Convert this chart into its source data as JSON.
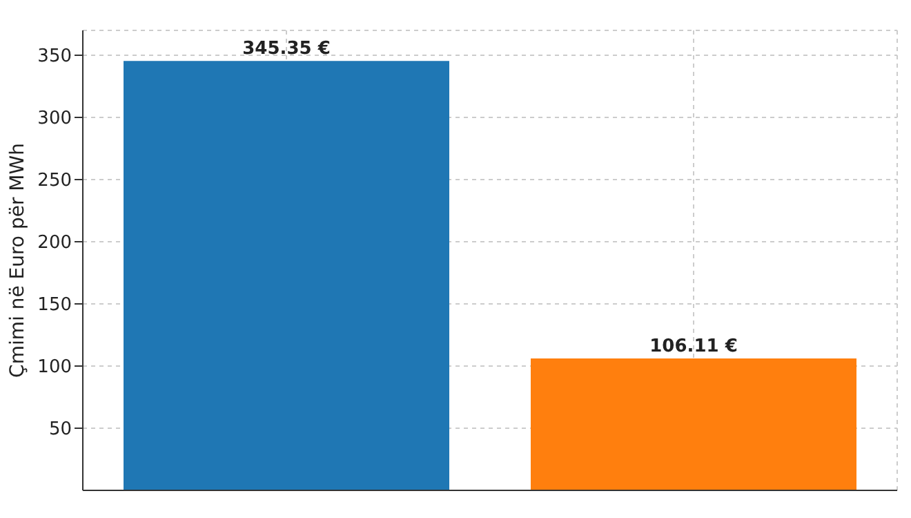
{
  "chart_data": {
    "type": "bar",
    "ylabel": "Çmimi në Euro për MWh",
    "categories": [
      null,
      null
    ],
    "values": [
      345.35,
      106.11
    ],
    "colors": [
      "#1f77b4",
      "#ff7f0e"
    ],
    "value_labels": [
      "345.35 €",
      "106.11 €"
    ],
    "ylim": [
      0,
      370
    ],
    "yticks": [
      50,
      100,
      150,
      200,
      250,
      300,
      350
    ],
    "grid": true
  }
}
